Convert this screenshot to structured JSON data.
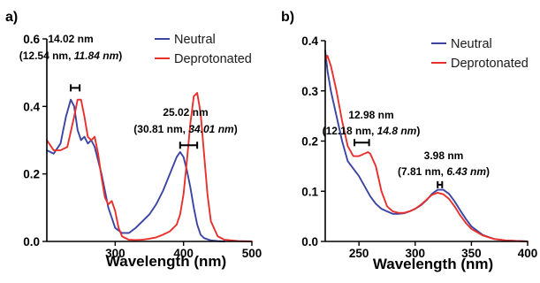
{
  "chart_data": [
    {
      "panel": "a)",
      "type": "line",
      "xlabel": "Wavelength (nm)",
      "ylabel": "",
      "xlim": [
        200,
        500
      ],
      "ylim": [
        0,
        0.6
      ],
      "xticks": [
        "300",
        "400",
        "500"
      ],
      "xtick_values": [
        300,
        400,
        500
      ],
      "yticks": [
        "0.0",
        "0.2",
        "0.4",
        "0.6"
      ],
      "ytick_values": [
        0,
        0.2,
        0.4,
        0.6
      ],
      "legend": {
        "position": "top-right",
        "entries": [
          "Neutral",
          "Deprotonated"
        ]
      },
      "series": [
        {
          "name": "Neutral",
          "color": "#3b44a3",
          "x": [
            200,
            210,
            220,
            228,
            235,
            240,
            245,
            250,
            255,
            260,
            265,
            270,
            280,
            290,
            300,
            310,
            320,
            330,
            340,
            350,
            360,
            370,
            380,
            390,
            395,
            400,
            405,
            410,
            415,
            420,
            425,
            430,
            440,
            450,
            460
          ],
          "y": [
            0.27,
            0.26,
            0.29,
            0.37,
            0.42,
            0.4,
            0.33,
            0.3,
            0.31,
            0.29,
            0.3,
            0.28,
            0.2,
            0.1,
            0.04,
            0.025,
            0.025,
            0.04,
            0.06,
            0.08,
            0.11,
            0.15,
            0.2,
            0.25,
            0.265,
            0.25,
            0.21,
            0.16,
            0.1,
            0.05,
            0.02,
            0.01,
            0.003,
            0.001,
            0.0
          ]
        },
        {
          "name": "Deprotonated",
          "color": "#e8302c",
          "x": [
            200,
            210,
            220,
            230,
            240,
            245,
            250,
            255,
            260,
            265,
            270,
            275,
            280,
            285,
            290,
            295,
            300,
            305,
            310,
            320,
            330,
            340,
            350,
            360,
            370,
            380,
            390,
            395,
            400,
            405,
            410,
            415,
            420,
            425,
            430,
            435,
            440,
            450,
            460,
            480,
            500
          ],
          "y": [
            0.3,
            0.27,
            0.27,
            0.28,
            0.37,
            0.42,
            0.42,
            0.37,
            0.31,
            0.3,
            0.31,
            0.26,
            0.19,
            0.13,
            0.11,
            0.12,
            0.09,
            0.04,
            0.015,
            0.005,
            0.004,
            0.005,
            0.008,
            0.012,
            0.02,
            0.03,
            0.05,
            0.08,
            0.14,
            0.24,
            0.35,
            0.43,
            0.44,
            0.38,
            0.26,
            0.14,
            0.06,
            0.015,
            0.005,
            0.001,
            0.0
          ]
        }
      ],
      "annotations": [
        {
          "line1": "14.02 nm",
          "line2_prefix": "(12.54 nm, ",
          "line2_italic": "11.84 nm",
          "line2_suffix": ")",
          "bracket_x": [
            235,
            248
          ],
          "bracket_y": 0.455
        },
        {
          "line1": "25.02 nm",
          "line2_prefix": "(30.81 nm, ",
          "line2_italic": "34.01 nm",
          "line2_suffix": ")",
          "bracket_x": [
            395,
            420
          ],
          "bracket_y": 0.285
        }
      ]
    },
    {
      "panel": "b)",
      "type": "line",
      "xlabel": "Wavelength (nm)",
      "ylabel": "",
      "xlim": [
        220,
        400
      ],
      "ylim": [
        0,
        0.4
      ],
      "xticks": [
        "250",
        "300",
        "350",
        "400"
      ],
      "xtick_values": [
        250,
        300,
        350,
        400
      ],
      "yticks": [
        "0.0",
        "0.1",
        "0.2",
        "0.3",
        "0.4"
      ],
      "ytick_values": [
        0,
        0.1,
        0.2,
        0.3,
        0.4
      ],
      "legend": {
        "position": "top-right",
        "entries": [
          "Neutral",
          "Deprotonated"
        ]
      },
      "series": [
        {
          "name": "Neutral",
          "color": "#3b44a3",
          "x": [
            220,
            222,
            225,
            230,
            235,
            240,
            245,
            250,
            255,
            260,
            265,
            270,
            275,
            280,
            285,
            290,
            295,
            300,
            305,
            310,
            315,
            320,
            325,
            330,
            335,
            340,
            345,
            350,
            360,
            370,
            380,
            390,
            400
          ],
          "y": [
            0.38,
            0.34,
            0.3,
            0.25,
            0.2,
            0.16,
            0.145,
            0.13,
            0.11,
            0.09,
            0.075,
            0.065,
            0.06,
            0.055,
            0.055,
            0.056,
            0.06,
            0.065,
            0.072,
            0.082,
            0.095,
            0.103,
            0.103,
            0.095,
            0.08,
            0.062,
            0.045,
            0.03,
            0.013,
            0.005,
            0.002,
            0.001,
            0.0
          ]
        },
        {
          "name": "Deprotonated",
          "color": "#e8302c",
          "x": [
            220,
            222,
            225,
            230,
            235,
            240,
            245,
            250,
            255,
            258,
            260,
            265,
            270,
            275,
            280,
            285,
            290,
            295,
            300,
            305,
            310,
            315,
            320,
            325,
            330,
            335,
            340,
            345,
            350,
            360,
            370,
            380,
            390,
            400
          ],
          "y": [
            0.36,
            0.37,
            0.35,
            0.3,
            0.24,
            0.19,
            0.17,
            0.17,
            0.175,
            0.178,
            0.175,
            0.15,
            0.1,
            0.07,
            0.06,
            0.057,
            0.057,
            0.06,
            0.065,
            0.073,
            0.083,
            0.093,
            0.097,
            0.094,
            0.085,
            0.07,
            0.052,
            0.037,
            0.025,
            0.012,
            0.005,
            0.002,
            0.001,
            0.0
          ]
        }
      ],
      "annotations": [
        {
          "line1": "12.98 nm",
          "line2_prefix": "(12.18 nm, ",
          "line2_italic": "14.8 nm",
          "line2_suffix": ")",
          "bracket_x": [
            246,
            259
          ],
          "bracket_y": 0.197
        },
        {
          "line1": "3.98 nm",
          "line2_prefix": "(7.81 nm, ",
          "line2_italic": "6.43 nm",
          "line2_suffix": ")",
          "bracket_x": [
            320,
            324
          ],
          "bracket_y": 0.113
        }
      ]
    }
  ]
}
